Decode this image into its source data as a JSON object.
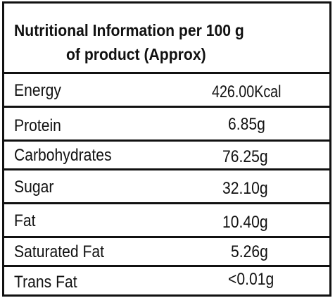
{
  "header": {
    "line1": "Nutritional Information per 100 g",
    "line2": "of product (Approx)"
  },
  "rows": [
    {
      "name": "Energy",
      "value": "426.00Kcal"
    },
    {
      "name": "Protein",
      "value": "6.85g"
    },
    {
      "name": "Carbohydrates",
      "value": "76.25g"
    },
    {
      "name": "Sugar",
      "value": "32.10g"
    },
    {
      "name": "Fat",
      "value": "10.40g"
    },
    {
      "name": "Saturated Fat",
      "value": "5.26g"
    },
    {
      "name": "Trans Fat",
      "value": "<0.01g"
    }
  ]
}
